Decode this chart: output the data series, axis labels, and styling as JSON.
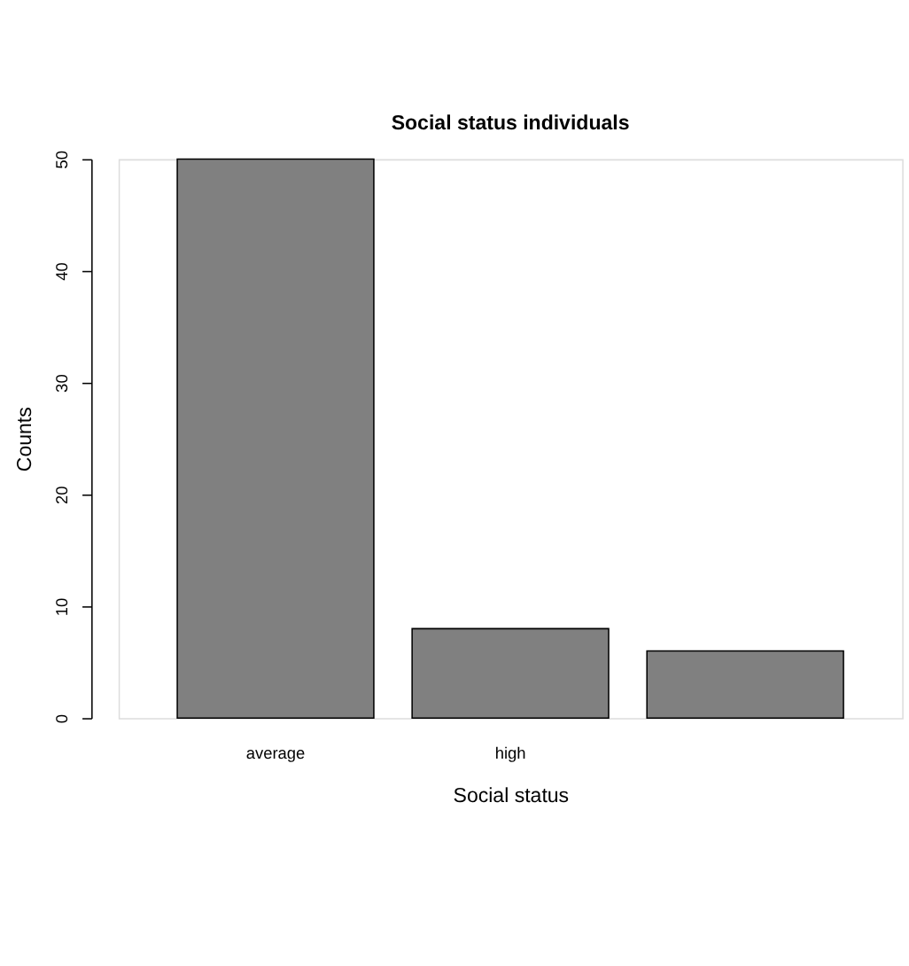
{
  "chart_data": {
    "type": "bar",
    "title": "Social status individuals",
    "xlabel": "Social status",
    "ylabel": "Counts",
    "categories": [
      "average",
      "high",
      null
    ],
    "values": [
      50,
      8,
      6
    ],
    "color": "#808080",
    "ylim": [
      0,
      50
    ],
    "yticks": [
      0,
      10,
      20,
      30,
      40,
      50
    ],
    "grid": false
  }
}
